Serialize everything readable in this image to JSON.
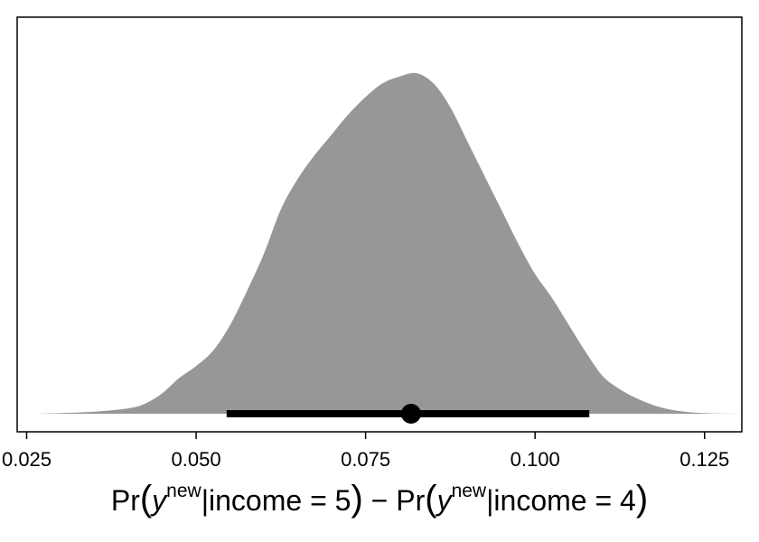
{
  "chart_data": {
    "type": "area",
    "subtype": "density-with-pointinterval",
    "xlabel": "Pr(y^new | income = 5) − Pr(y^new | income = 4)",
    "xlabel_parts": {
      "pr1": "Pr",
      "y1": "y",
      "sup1": "new",
      "cond1": "|income",
      "eq1": " = ",
      "val1": "5",
      "minus": " − ",
      "pr2": "Pr",
      "y2": "y",
      "sup2": "new",
      "cond2": "|income",
      "eq2": " = ",
      "val2": "4"
    },
    "ylabel": "",
    "xlim": [
      0.0236,
      0.1305
    ],
    "x_ticks": [
      0.025,
      0.05,
      0.075,
      0.1,
      0.125
    ],
    "x_tick_labels": [
      "0.025",
      "0.050",
      "0.075",
      "0.100",
      "0.125"
    ],
    "y_axis_shown": false,
    "grid": false,
    "colors": {
      "density_fill": "#979797",
      "interval": "#000000",
      "frame": "#000000"
    },
    "density": {
      "x": [
        0.0265,
        0.03,
        0.035,
        0.04,
        0.0425,
        0.045,
        0.0475,
        0.05,
        0.0525,
        0.055,
        0.0575,
        0.06,
        0.0625,
        0.065,
        0.0675,
        0.07,
        0.0725,
        0.075,
        0.0775,
        0.08,
        0.0825,
        0.085,
        0.0875,
        0.09,
        0.0925,
        0.095,
        0.0975,
        0.1,
        0.1025,
        0.105,
        0.1075,
        0.11,
        0.1125,
        0.115,
        0.1175,
        0.12,
        0.1225,
        0.125,
        0.1275,
        0.13
      ],
      "y": [
        0.0,
        0.002,
        0.006,
        0.016,
        0.03,
        0.06,
        0.105,
        0.14,
        0.185,
        0.26,
        0.36,
        0.47,
        0.6,
        0.69,
        0.76,
        0.82,
        0.88,
        0.93,
        0.97,
        0.99,
        1.0,
        0.97,
        0.9,
        0.8,
        0.7,
        0.6,
        0.5,
        0.41,
        0.34,
        0.26,
        0.18,
        0.11,
        0.072,
        0.045,
        0.025,
        0.012,
        0.005,
        0.002,
        0.0005,
        0.0
      ]
    },
    "point_estimate": 0.0817,
    "interval": [
      0.0545,
      0.108
    ]
  }
}
